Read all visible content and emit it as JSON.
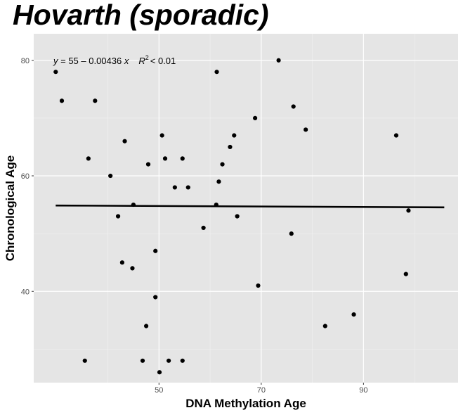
{
  "chart_data": {
    "type": "scatter",
    "title": "Hovarth (sporadic)",
    "xlabel": "DNA Methylation Age",
    "ylabel": "Chronological Age",
    "xlim": [
      25.5,
      108.5
    ],
    "ylim": [
      24.2,
      84.6
    ],
    "x_ticks": [
      50,
      70,
      90
    ],
    "y_ticks": [
      40,
      60,
      80
    ],
    "x_tick_labels": [
      "50",
      "70",
      "90"
    ],
    "y_tick_labels": [
      "40",
      "60",
      "80"
    ],
    "grid": true,
    "annotation": {
      "equation": "y = 55 – 0.00436 x",
      "r2_symbol": "R",
      "r2_exponent": "2",
      "r2_value": "< 0.01"
    },
    "trendline": {
      "intercept": 55,
      "slope": -0.00436,
      "x_range": [
        29.8,
        105.8
      ]
    },
    "points": [
      {
        "x": 29.8,
        "y": 78
      },
      {
        "x": 31.0,
        "y": 73
      },
      {
        "x": 37.5,
        "y": 73
      },
      {
        "x": 36.2,
        "y": 63
      },
      {
        "x": 35.5,
        "y": 28
      },
      {
        "x": 40.5,
        "y": 60
      },
      {
        "x": 42.0,
        "y": 53
      },
      {
        "x": 43.3,
        "y": 66
      },
      {
        "x": 42.8,
        "y": 45
      },
      {
        "x": 44.8,
        "y": 44
      },
      {
        "x": 45.0,
        "y": 55
      },
      {
        "x": 46.8,
        "y": 28
      },
      {
        "x": 47.5,
        "y": 34
      },
      {
        "x": 47.9,
        "y": 62
      },
      {
        "x": 49.3,
        "y": 47
      },
      {
        "x": 49.3,
        "y": 39
      },
      {
        "x": 50.1,
        "y": 26
      },
      {
        "x": 50.6,
        "y": 67
      },
      {
        "x": 51.2,
        "y": 63
      },
      {
        "x": 51.9,
        "y": 28
      },
      {
        "x": 53.1,
        "y": 58
      },
      {
        "x": 54.6,
        "y": 63
      },
      {
        "x": 54.6,
        "y": 28
      },
      {
        "x": 55.7,
        "y": 58
      },
      {
        "x": 58.7,
        "y": 51
      },
      {
        "x": 61.3,
        "y": 78
      },
      {
        "x": 61.2,
        "y": 55
      },
      {
        "x": 61.7,
        "y": 59
      },
      {
        "x": 62.4,
        "y": 62
      },
      {
        "x": 63.9,
        "y": 65
      },
      {
        "x": 64.7,
        "y": 67
      },
      {
        "x": 65.3,
        "y": 53
      },
      {
        "x": 68.8,
        "y": 70
      },
      {
        "x": 69.4,
        "y": 41
      },
      {
        "x": 73.4,
        "y": 80
      },
      {
        "x": 75.9,
        "y": 50
      },
      {
        "x": 76.3,
        "y": 72
      },
      {
        "x": 78.7,
        "y": 68
      },
      {
        "x": 82.5,
        "y": 34
      },
      {
        "x": 88.1,
        "y": 36
      },
      {
        "x": 96.4,
        "y": 67
      },
      {
        "x": 98.3,
        "y": 43
      },
      {
        "x": 98.8,
        "y": 54
      }
    ]
  }
}
